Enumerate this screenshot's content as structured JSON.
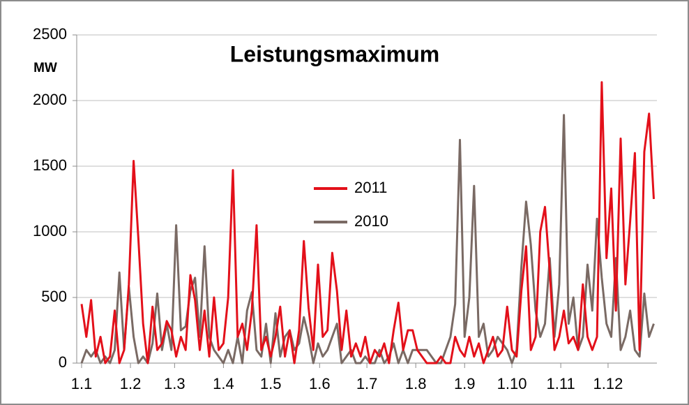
{
  "chart_data": {
    "type": "line",
    "title": "Leistungsmaximum",
    "y_label": "MW",
    "x": [
      0,
      3,
      6,
      9,
      12,
      15,
      18,
      21,
      24,
      27,
      30,
      33,
      36,
      39,
      42,
      45,
      48,
      51,
      54,
      57,
      60,
      63,
      66,
      69,
      72,
      75,
      78,
      81,
      84,
      87,
      90,
      93,
      96,
      99,
      102,
      105,
      108,
      111,
      114,
      117,
      120,
      123,
      126,
      129,
      132,
      135,
      138,
      141,
      144,
      147,
      150,
      153,
      156,
      159,
      162,
      165,
      168,
      171,
      174,
      177,
      180,
      183,
      186,
      189,
      192,
      195,
      198,
      201,
      204,
      207,
      210,
      213,
      216,
      219,
      222,
      225,
      228,
      231,
      234,
      237,
      240,
      243,
      246,
      249,
      252,
      255,
      258,
      261,
      264,
      267,
      270,
      273,
      276,
      279,
      282,
      285,
      288,
      291,
      294,
      297,
      300,
      303,
      306,
      309,
      312,
      315,
      318,
      321,
      324,
      327,
      330,
      333,
      336,
      339,
      342,
      345,
      348,
      351,
      354,
      357,
      360,
      363
    ],
    "series": [
      {
        "name": "2011",
        "color": "#e3101a",
        "values": [
          450,
          200,
          480,
          50,
          200,
          0,
          50,
          400,
          0,
          100,
          600,
          1540,
          950,
          300,
          0,
          430,
          100,
          150,
          320,
          250,
          50,
          200,
          100,
          670,
          480,
          100,
          400,
          50,
          500,
          100,
          150,
          500,
          1470,
          200,
          300,
          100,
          400,
          1050,
          100,
          200,
          50,
          200,
          430,
          50,
          250,
          0,
          250,
          930,
          420,
          100,
          750,
          200,
          250,
          840,
          550,
          100,
          400,
          50,
          150,
          50,
          200,
          0,
          100,
          50,
          150,
          0,
          250,
          460,
          100,
          250,
          250,
          100,
          50,
          0,
          0,
          0,
          50,
          0,
          0,
          200,
          100,
          50,
          200,
          50,
          150,
          0,
          100,
          200,
          50,
          100,
          430,
          100,
          50,
          550,
          890,
          100,
          200,
          1000,
          1190,
          700,
          100,
          200,
          400,
          150,
          200,
          100,
          600,
          200,
          100,
          200,
          2140,
          800,
          1330,
          400,
          1710,
          600,
          1080,
          1600,
          100,
          1610,
          1900,
          1250
        ]
      },
      {
        "name": "2010",
        "color": "#7a6a64",
        "values": [
          0,
          100,
          50,
          100,
          0,
          50,
          0,
          100,
          690,
          100,
          580,
          200,
          0,
          50,
          0,
          150,
          530,
          100,
          300,
          100,
          1050,
          250,
          280,
          550,
          650,
          200,
          890,
          200,
          100,
          50,
          0,
          100,
          0,
          200,
          0,
          400,
          540,
          100,
          50,
          300,
          0,
          380,
          50,
          200,
          250,
          100,
          150,
          350,
          200,
          0,
          150,
          50,
          100,
          200,
          300,
          0,
          50,
          100,
          0,
          0,
          50,
          0,
          0,
          100,
          0,
          50,
          150,
          0,
          100,
          0,
          100,
          100,
          100,
          100,
          50,
          0,
          0,
          100,
          200,
          450,
          1700,
          200,
          500,
          1350,
          200,
          300,
          50,
          100,
          200,
          150,
          100,
          0,
          100,
          730,
          1230,
          900,
          400,
          200,
          300,
          800,
          200,
          600,
          1890,
          300,
          500,
          100,
          200,
          750,
          400,
          1100,
          650,
          300,
          200,
          800,
          100,
          200,
          400,
          100,
          50,
          530,
          200,
          300
        ]
      }
    ],
    "xlim": [
      0,
      365
    ],
    "xticks": [
      {
        "value": 0,
        "label": "1.1"
      },
      {
        "value": 31,
        "label": "1.2"
      },
      {
        "value": 59,
        "label": "1.3"
      },
      {
        "value": 90,
        "label": "1.4"
      },
      {
        "value": 120,
        "label": "1.5"
      },
      {
        "value": 151,
        "label": "1.6"
      },
      {
        "value": 181,
        "label": "1.7"
      },
      {
        "value": 212,
        "label": "1.8"
      },
      {
        "value": 243,
        "label": "1.9"
      },
      {
        "value": 273,
        "label": "1.10"
      },
      {
        "value": 304,
        "label": "1.11"
      },
      {
        "value": 334,
        "label": "1.12"
      }
    ],
    "ylim": [
      0,
      2500
    ],
    "yticks": [
      0,
      500,
      1000,
      1500,
      2000,
      2500
    ],
    "grid": true
  }
}
